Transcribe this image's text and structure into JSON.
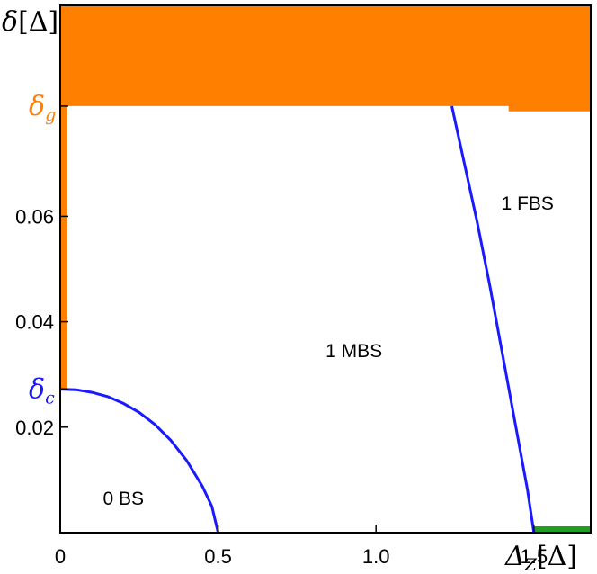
{
  "chart_data": {
    "type": "area",
    "xlabel": {
      "main": "Δ",
      "sub": "Z",
      "unit": "[Δ]"
    },
    "ylabel": {
      "main": "δ",
      "unit": "[Δ]"
    },
    "xlim": [
      0,
      1.68
    ],
    "ylim": [
      0,
      0.1
    ],
    "x_ticks": [
      {
        "value": 0,
        "label": "0"
      },
      {
        "value": 0.5,
        "label": "0.5"
      },
      {
        "value": 1.0,
        "label": "1.0"
      },
      {
        "value": 1.5,
        "label": "1.5"
      }
    ],
    "y_ticks": [
      {
        "value": 0.02,
        "label": "0.02"
      },
      {
        "value": 0.04,
        "label": "0.04"
      },
      {
        "value": 0.06,
        "label": "0.06"
      }
    ],
    "special_y_ticks": [
      {
        "name": "delta-g",
        "main": "δ",
        "sub": "g",
        "value": 0.0809,
        "color": "#ff8000"
      },
      {
        "name": "delta-c",
        "main": "δ",
        "sub": "c",
        "value": 0.0272,
        "color": "#1a1aff"
      }
    ],
    "regions": [
      {
        "name": "gapped-top",
        "color": "#ff8000",
        "polygon": [
          [
            0,
            0.1
          ],
          [
            1.68,
            0.1
          ],
          [
            1.68,
            0.0799
          ],
          [
            1.42,
            0.0799
          ],
          [
            1.42,
            0.0809
          ],
          [
            0,
            0.0809
          ]
        ]
      },
      {
        "name": "left-strip",
        "color": "#ff8000",
        "polygon": [
          [
            0,
            0.0809
          ],
          [
            0.022,
            0.0809
          ],
          [
            0.022,
            0.0272
          ],
          [
            0,
            0.0272
          ]
        ]
      },
      {
        "name": "bottom-strip",
        "color": "#20a020",
        "polygon": [
          [
            1.5,
            0
          ],
          [
            1.68,
            0
          ],
          [
            1.68,
            0.0012
          ],
          [
            1.5,
            0.0012
          ]
        ]
      }
    ],
    "series": [
      {
        "name": "",
        "color": "#1a1aff",
        "x": [
          0,
          0.05,
          0.1,
          0.15,
          0.2,
          0.25,
          0.3,
          0.35,
          0.4,
          0.45,
          0.48,
          0.5
        ],
        "y": [
          0.0272,
          0.0271,
          0.0266,
          0.0258,
          0.0245,
          0.0228,
          0.0205,
          0.0175,
          0.0137,
          0.0088,
          0.005,
          0.0
        ]
      },
      {
        "name": "",
        "color": "#1a1aff",
        "x": [
          1.24,
          1.28,
          1.32,
          1.36,
          1.4,
          1.44,
          1.48,
          1.5
        ],
        "y": [
          0.0809,
          0.07,
          0.059,
          0.047,
          0.034,
          0.021,
          0.008,
          0.0
        ]
      }
    ],
    "annotations": [
      {
        "text": "0 BS",
        "x": 0.2,
        "y": 0.0065
      },
      {
        "text": "1 MBS",
        "x": 0.93,
        "y": 0.0345
      },
      {
        "text": "1 FBS",
        "x": 1.48,
        "y": 0.0625
      }
    ],
    "grid": false
  }
}
